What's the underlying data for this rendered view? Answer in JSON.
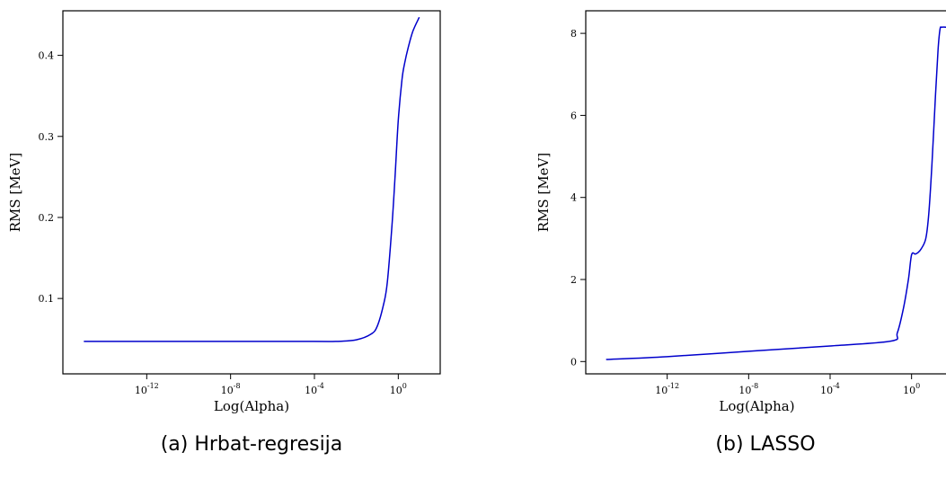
{
  "chart_data": [
    {
      "type": "line",
      "caption": "(a) Hrbat-regresija",
      "xlabel": "Log(Alpha)",
      "ylabel": "RMS [MeV]",
      "xscale": "log",
      "xlim": [
        1e-16,
        100.0
      ],
      "ylim": [
        0.007,
        0.455
      ],
      "xticks": [
        {
          "value": 1e-12,
          "base": "10",
          "exp": "-12"
        },
        {
          "value": 1e-08,
          "base": "10",
          "exp": "-8"
        },
        {
          "value": 0.0001,
          "base": "10",
          "exp": "-4"
        },
        {
          "value": 1,
          "base": "10",
          "exp": "0"
        }
      ],
      "yticks": [
        {
          "value": 0.1,
          "label": "0.1"
        },
        {
          "value": 0.2,
          "label": "0.2"
        },
        {
          "value": 0.3,
          "label": "0.3"
        },
        {
          "value": 0.4,
          "label": "0.4"
        }
      ],
      "series": [
        {
          "color": "#0000cc",
          "x": [
            1e-15,
            1e-12,
            1e-08,
            0.0001,
            0.001,
            0.01,
            0.05,
            0.1,
            0.2,
            0.3,
            0.5,
            0.7,
            1,
            1.5,
            2,
            3,
            5,
            10
          ],
          "y": [
            0.047,
            0.047,
            0.047,
            0.047,
            0.047,
            0.049,
            0.056,
            0.066,
            0.093,
            0.12,
            0.19,
            0.25,
            0.32,
            0.37,
            0.39,
            0.41,
            0.43,
            0.447
          ]
        }
      ]
    },
    {
      "type": "line",
      "caption": "(b) LASSO",
      "xlabel": "Log(Alpha)",
      "ylabel": "RMS [MeV]",
      "xscale": "log",
      "xlim": [
        1e-16,
        100.0
      ],
      "ylim": [
        -0.3,
        8.55
      ],
      "xticks": [
        {
          "value": 1e-12,
          "base": "10",
          "exp": "-12"
        },
        {
          "value": 1e-08,
          "base": "10",
          "exp": "-8"
        },
        {
          "value": 0.0001,
          "base": "10",
          "exp": "-4"
        },
        {
          "value": 1,
          "base": "10",
          "exp": "0"
        }
      ],
      "yticks": [
        {
          "value": 0,
          "label": "0"
        },
        {
          "value": 2,
          "label": "2"
        },
        {
          "value": 4,
          "label": "4"
        },
        {
          "value": 6,
          "label": "6"
        },
        {
          "value": 8,
          "label": "8"
        }
      ],
      "series": [
        {
          "color": "#0000cc",
          "x": [
            1e-15,
            1e-12,
            1e-08,
            0.0001,
            0.1,
            0.2,
            0.4,
            0.7,
            1,
            1.5,
            2,
            3,
            5,
            7,
            10,
            15,
            20,
            25,
            30,
            50,
            100
          ],
          "y": [
            0.05,
            0.12,
            0.25,
            0.38,
            0.5,
            0.7,
            1.3,
            2.0,
            2.6,
            2.62,
            2.65,
            2.75,
            3.0,
            3.6,
            4.8,
            6.5,
            7.6,
            8.1,
            8.15,
            8.15,
            8.15
          ]
        }
      ]
    }
  ]
}
